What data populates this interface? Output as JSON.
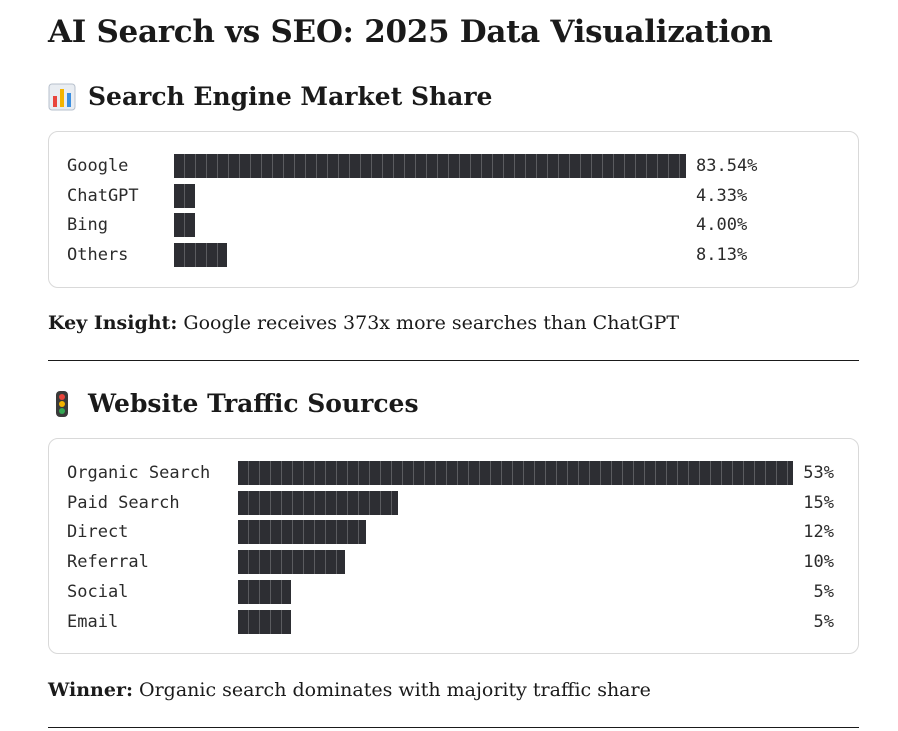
{
  "title": "AI Search vs SEO: 2025 Data Visualization",
  "market_share": {
    "heading": "Search Engine Market Share",
    "heading_icon": "bar-chart-icon",
    "rows": [
      {
        "label": "Google",
        "value": 83.54,
        "display": "83.54%"
      },
      {
        "label": "ChatGPT",
        "value": 4.33,
        "display": "4.33%"
      },
      {
        "label": "Bing",
        "value": 4.0,
        "display": "4.00%"
      },
      {
        "label": "Others",
        "value": 8.13,
        "display": "8.13%"
      }
    ],
    "insight_label": "Key Insight:",
    "insight_text": " Google receives 373x more searches than ChatGPT"
  },
  "traffic_sources": {
    "heading": "Website Traffic Sources",
    "heading_icon": "traffic-light-icon",
    "rows": [
      {
        "label": "Organic Search",
        "value": 53,
        "display": "53%"
      },
      {
        "label": "Paid Search",
        "value": 15,
        "display": "15%"
      },
      {
        "label": "Direct",
        "value": 12,
        "display": "12%"
      },
      {
        "label": "Referral",
        "value": 10,
        "display": "10%"
      },
      {
        "label": "Social",
        "value": 5,
        "display": "5%"
      },
      {
        "label": "Email",
        "value": 5,
        "display": "5%"
      }
    ],
    "winner_label": "Winner:",
    "winner_text": " Organic search dominates with majority traffic share"
  },
  "colors": {
    "bar": "#2d2e33",
    "border": "#d9d9d9",
    "text": "#1a1a1a"
  }
}
